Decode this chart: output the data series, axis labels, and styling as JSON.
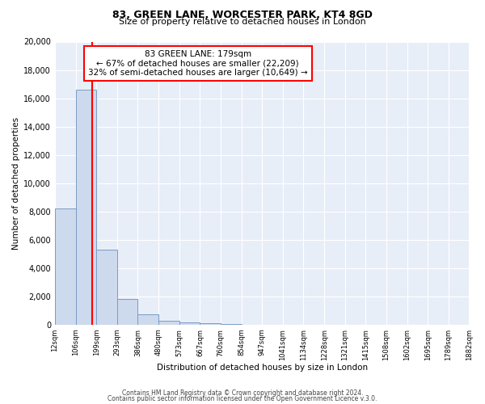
{
  "title": "83, GREEN LANE, WORCESTER PARK, KT4 8GD",
  "subtitle": "Size of property relative to detached houses in London",
  "xlabel": "Distribution of detached houses by size in London",
  "ylabel": "Number of detached properties",
  "bar_color": "#cdd9ed",
  "bar_edge_color": "#7a9cc5",
  "background_color": "#e8eef8",
  "grid_color": "#ffffff",
  "red_line_x": 179,
  "annotation_title": "83 GREEN LANE: 179sqm",
  "annotation_line1": "← 67% of detached houses are smaller (22,209)",
  "annotation_line2": "32% of semi-detached houses are larger (10,649) →",
  "bins": [
    12,
    106,
    199,
    293,
    386,
    480,
    573,
    667,
    760,
    854,
    947,
    1041,
    1134,
    1228,
    1321,
    1415,
    1508,
    1602,
    1695,
    1789,
    1882
  ],
  "counts": [
    8200,
    16600,
    5300,
    1800,
    750,
    280,
    190,
    110,
    60,
    0,
    0,
    0,
    0,
    0,
    0,
    0,
    0,
    0,
    0,
    0
  ],
  "ylim": [
    0,
    20000
  ],
  "yticks": [
    0,
    2000,
    4000,
    6000,
    8000,
    10000,
    12000,
    14000,
    16000,
    18000,
    20000
  ],
  "footnote1": "Contains HM Land Registry data © Crown copyright and database right 2024.",
  "footnote2": "Contains public sector information licensed under the Open Government Licence v.3.0."
}
